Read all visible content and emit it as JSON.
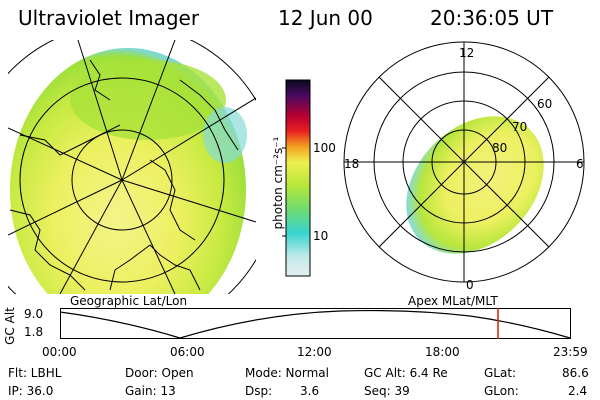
{
  "header": {
    "title": "Ultraviolet Imager",
    "date": "12 Jun 00",
    "time": "20:36:05 UT"
  },
  "colorbar": {
    "unit_label": "photon cm⁻²s⁻¹",
    "ticks": [
      "100",
      "10"
    ]
  },
  "panels": {
    "geographic_label": "Geographic Lat/Lon",
    "apex_label": "Apex MLat/MLT"
  },
  "polar_plot": {
    "mlt_labels": {
      "top": "12",
      "left": "18",
      "right": "6",
      "bottom": "0"
    },
    "lat_labels": [
      "60",
      "70",
      "80"
    ]
  },
  "timeline": {
    "axis_label": "GC Alt",
    "y_ticks": [
      "9.0",
      "1.8"
    ],
    "x_ticks": [
      "00:00",
      "06:00",
      "12:00",
      "18:00",
      "23:59"
    ],
    "marker_time": "20:36"
  },
  "info": {
    "rows": [
      [
        "Flt: LBHL",
        "Door: Open",
        "Mode: Normal",
        "GC Alt: 6.4 Re",
        "GLat:",
        "86.6"
      ],
      [
        "IP: 36.0",
        "Gain: 13",
        "Dsp:",
        "3.6",
        "Seq: 39",
        "GLon:",
        "2.4"
      ]
    ]
  },
  "colors": {
    "marker": "#cc2200",
    "image_yellow": "#ecf060",
    "image_green": "#b6e63a"
  }
}
